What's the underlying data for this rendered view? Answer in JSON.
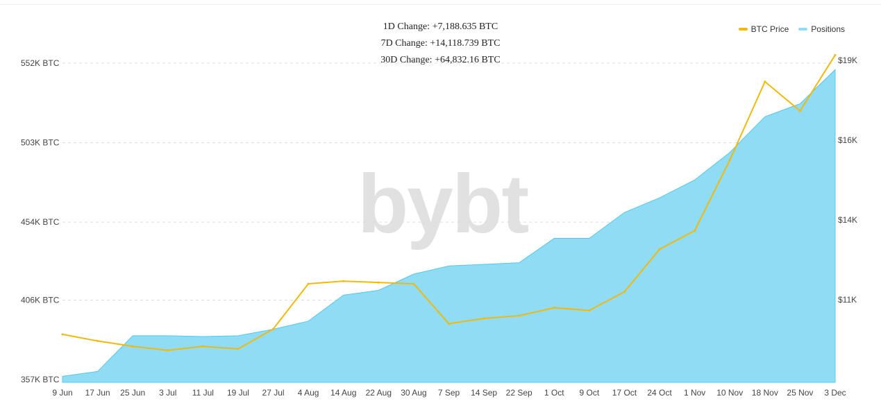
{
  "changes": {
    "one_day": "1D Change: +7,188.635 BTC",
    "seven_day": "7D Change: +14,118.739 BTC",
    "thirty_day": "30D Change: +64,832.16 BTC"
  },
  "legend": {
    "price_label": "BTC Price",
    "positions_label": "Positions"
  },
  "watermark": "bybt",
  "colors": {
    "price": "#f0b90b",
    "positions_fill": "#8fdcf4",
    "positions_line": "#55c7ee"
  },
  "chart_data": {
    "type": "area",
    "x": [
      "9 Jun",
      "17 Jun",
      "25 Jun",
      "3 Jul",
      "11 Jul",
      "19 Jul",
      "27 Jul",
      "4 Aug",
      "14 Aug",
      "22 Aug",
      "30 Aug",
      "7 Sep",
      "14 Sep",
      "22 Sep",
      "1 Oct",
      "9 Oct",
      "17 Oct",
      "24 Oct",
      "1 Nov",
      "10 Nov",
      "18 Nov",
      "25 Nov",
      "3 Dec"
    ],
    "left_axis": {
      "ticks": [
        "357K BTC",
        "406K BTC",
        "454K BTC",
        "503K BTC",
        "552K BTC"
      ],
      "tick_values": [
        357,
        406,
        454,
        503,
        552
      ],
      "range": [
        357,
        552
      ],
      "unit": "K BTC"
    },
    "right_axis": {
      "ticks": [
        "$11K",
        "$14K",
        "$16K",
        "$19K"
      ],
      "tick_values": [
        11000,
        14000,
        16000,
        19000
      ]
    },
    "grid": true,
    "legend_position": "top-right",
    "series": [
      {
        "name": "Positions",
        "axis": "left",
        "values": [
          359,
          362,
          384,
          384,
          383.5,
          384,
          388,
          393,
          409,
          412,
          422,
          427,
          428,
          429,
          444,
          444,
          460,
          469,
          480,
          497,
          519,
          527,
          548
        ]
      },
      {
        "name": "BTC Price",
        "axis": "right",
        "values": [
          9700,
          9450,
          9250,
          9100,
          9250,
          9150,
          9900,
          11600,
          11700,
          11650,
          11600,
          10100,
          10300,
          10400,
          10700,
          10600,
          11300,
          12900,
          13600,
          15500,
          18200,
          17100,
          19200
        ]
      }
    ]
  }
}
